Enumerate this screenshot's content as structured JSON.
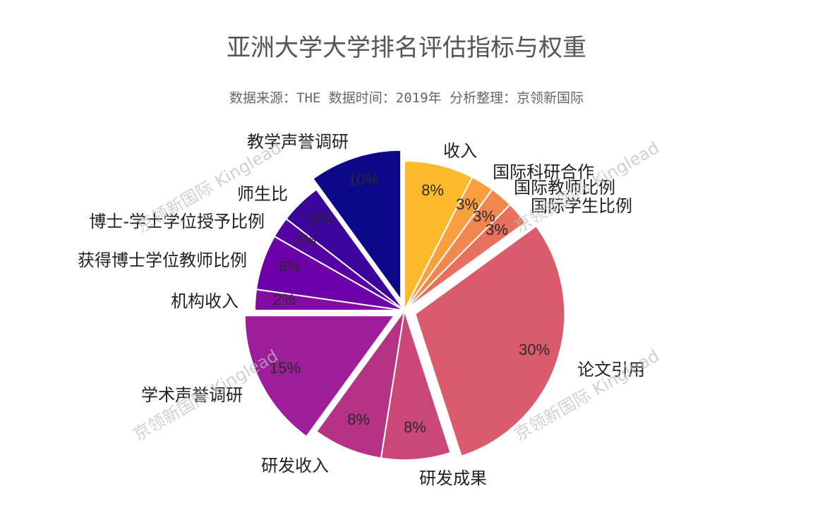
{
  "title": "亚洲大学大学排名评估指标与权重",
  "subtitle": "数据来源：THE 数据时间：2019年 分析整理：京领新国际",
  "watermark": "京领新国际 Kinglead",
  "chart_data": {
    "type": "pie",
    "title": "亚洲大学大学排名评估指标与权重",
    "subtitle": "数据来源：THE 数据时间：2019年 分析整理：京领新国际",
    "start_angle": "12 o'clock, clockwise",
    "slices": [
      {
        "label": "收入",
        "value": 7.5,
        "display": "8%",
        "color": "#FCBA2C",
        "exploded": false
      },
      {
        "label": "国际科研合作",
        "value": 2.5,
        "display": "3%",
        "color": "#F89F3F",
        "exploded": false
      },
      {
        "label": "国际教师比例",
        "value": 2.5,
        "display": "3%",
        "color": "#F1874F",
        "exploded": false
      },
      {
        "label": "国际学生比例",
        "value": 2.5,
        "display": "3%",
        "color": "#E7705E",
        "exploded": false
      },
      {
        "label": "论文引用",
        "value": 30,
        "display": "30%",
        "color": "#DA5B6B",
        "exploded": true
      },
      {
        "label": "研发成果",
        "value": 7.5,
        "display": "8%",
        "color": "#CA4778",
        "exploded": false
      },
      {
        "label": "研发收入",
        "value": 7.5,
        "display": "8%",
        "color": "#B63287",
        "exploded": false
      },
      {
        "label": "学术声誉调研",
        "value": 15,
        "display": "15%",
        "color": "#9E1D9A",
        "exploded": true
      },
      {
        "label": "机构收入",
        "value": 2.25,
        "display": "2%",
        "color": "#850AA2",
        "exploded": false
      },
      {
        "label": "获得博士学位教师比例",
        "value": 6,
        "display": "6%",
        "color": "#6D00A8",
        "exploded": false
      },
      {
        "label": "博士-学士学位授予比例",
        "value": 2.25,
        "display": "2%",
        "color": "#5402A3",
        "exploded": false
      },
      {
        "label": "师生比",
        "value": 4.5,
        "display": "5%",
        "color": "#3B049A",
        "exploded": false
      },
      {
        "label": "教学声誉调研",
        "value": 10,
        "display": "10%",
        "color": "#0D0887",
        "exploded": true
      }
    ]
  }
}
